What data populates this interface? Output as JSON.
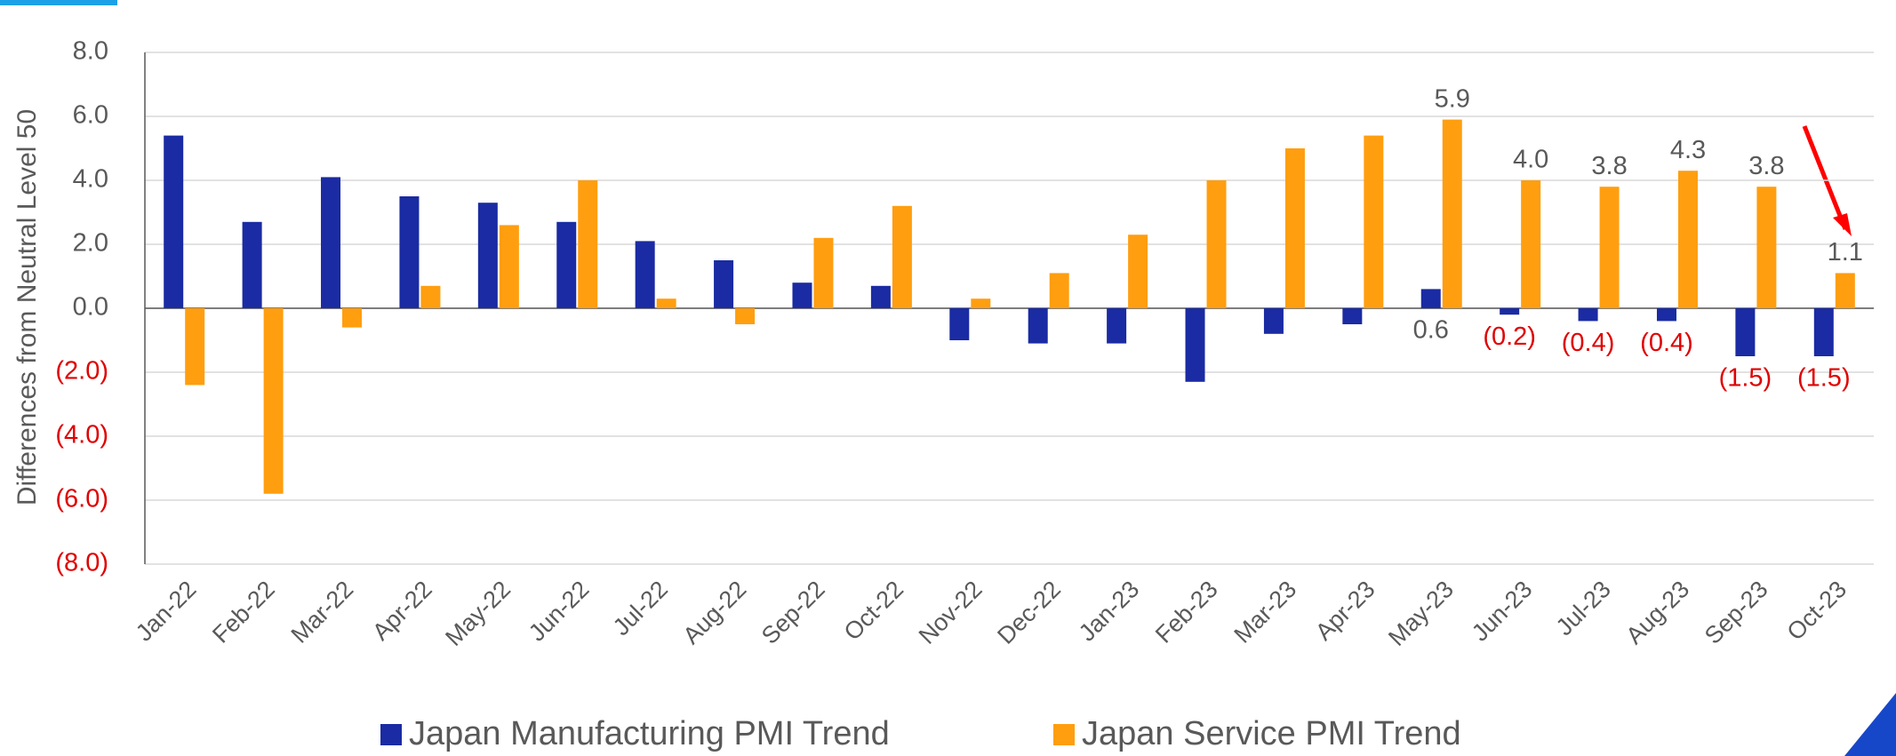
{
  "chart_data": {
    "type": "bar",
    "y_axis_label": "Differences from Neutral Level 50",
    "categories": [
      "Jan-22",
      "Feb-22",
      "Mar-22",
      "Apr-22",
      "May-22",
      "Jun-22",
      "Jul-22",
      "Aug-22",
      "Sep-22",
      "Oct-22",
      "Nov-22",
      "Dec-22",
      "Jan-23",
      "Feb-23",
      "Mar-23",
      "Apr-23",
      "May-23",
      "Jun-23",
      "Jul-23",
      "Aug-23",
      "Sep-23",
      "Oct-23"
    ],
    "series": [
      {
        "name": "Japan Manufacturing PMI Trend",
        "color": "#1a2ba3",
        "values": [
          5.4,
          2.7,
          4.1,
          3.5,
          3.3,
          2.7,
          2.1,
          1.5,
          0.8,
          0.7,
          -1.0,
          -1.1,
          -1.1,
          -2.3,
          -0.8,
          -0.5,
          0.6,
          -0.2,
          -0.4,
          -0.4,
          -1.5,
          -1.5
        ],
        "value_labels": [
          null,
          null,
          null,
          null,
          null,
          null,
          null,
          null,
          null,
          null,
          null,
          null,
          null,
          null,
          null,
          null,
          "0.6",
          "(0.2)",
          "(0.4)",
          "(0.4)",
          "(1.5)",
          "(1.5)"
        ]
      },
      {
        "name": "Japan Service PMI Trend",
        "color": "#ff9e0f",
        "values": [
          -2.4,
          -5.8,
          -0.6,
          0.7,
          2.6,
          4.0,
          0.3,
          -0.5,
          2.2,
          3.2,
          0.3,
          1.1,
          2.3,
          4.0,
          5.0,
          5.4,
          5.9,
          4.0,
          3.8,
          4.3,
          3.8,
          1.1
        ],
        "value_labels": [
          null,
          null,
          null,
          null,
          null,
          null,
          null,
          null,
          null,
          null,
          null,
          null,
          null,
          null,
          null,
          null,
          "5.9",
          "4.0",
          "3.8",
          "4.3",
          "3.8",
          "1.1"
        ]
      }
    ],
    "ylim": [
      -8,
      8
    ],
    "yticks": [
      {
        "value": -8,
        "label": "(8.0)"
      },
      {
        "value": -6,
        "label": "(6.0)"
      },
      {
        "value": -4,
        "label": "(4.0)"
      },
      {
        "value": -2,
        "label": "(2.0)"
      },
      {
        "value": 0,
        "label": "0.0"
      },
      {
        "value": 2,
        "label": "2.0"
      },
      {
        "value": 4,
        "label": "4.0"
      },
      {
        "value": 6,
        "label": "6.0"
      },
      {
        "value": 8,
        "label": "8.0"
      }
    ],
    "grid": true,
    "negative_label_color": "#e00000",
    "positive_label_color": "#595959",
    "legend_position": "bottom"
  }
}
